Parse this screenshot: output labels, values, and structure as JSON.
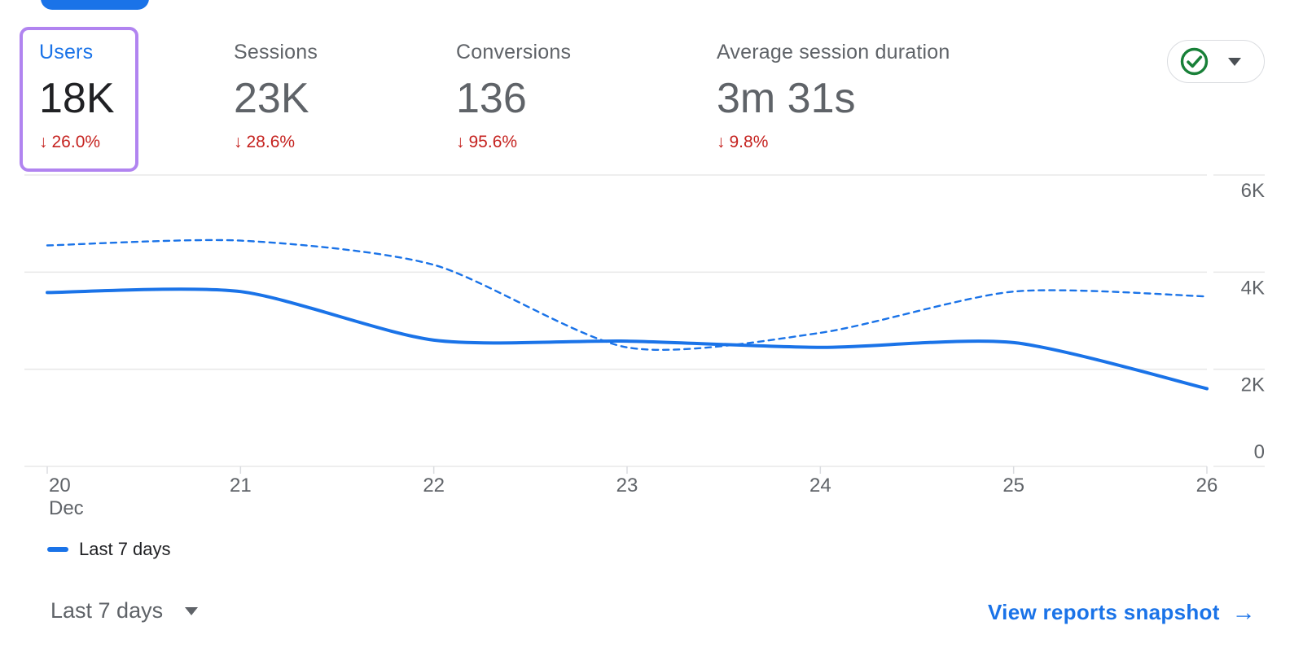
{
  "colors": {
    "accent_blue": "#1a73e8",
    "text_dark": "#202124",
    "text_gray": "#5f6368",
    "delta_red": "#c5221f",
    "highlight_purple": "#b184f0",
    "pill_border_gray": "#dadce0",
    "gridline_gray": "#e8e8e8",
    "check_green": "#188038"
  },
  "metrics": [
    {
      "label": "Users",
      "value": "18K",
      "arrow": "↓",
      "delta": "26.0%",
      "selected": true
    },
    {
      "label": "Sessions",
      "value": "23K",
      "arrow": "↓",
      "delta": "28.6%",
      "selected": false
    },
    {
      "label": "Conversions",
      "value": "136",
      "arrow": "↓",
      "delta": "95.6%",
      "selected": false
    },
    {
      "label": "Average session duration",
      "value": "3m 31s",
      "arrow": "↓",
      "delta": "9.8%",
      "selected": false
    }
  ],
  "chart_data": {
    "type": "line",
    "x_labels": [
      "20",
      "21",
      "22",
      "23",
      "24",
      "25",
      "26"
    ],
    "x_axis_secondary_label": "Dec",
    "series": [
      {
        "name": "Last 7 days",
        "style": "solid",
        "color": "#1a73e8",
        "values": [
          3580,
          3600,
          2600,
          2580,
          2450,
          2550,
          1600
        ]
      },
      {
        "name": "",
        "style": "dashed",
        "color": "#1a73e8",
        "values": [
          4550,
          4650,
          4150,
          2450,
          2750,
          3600,
          3500
        ]
      }
    ],
    "ylim": [
      0,
      6000
    ],
    "yticks": [
      {
        "value": 6000,
        "label": "6K"
      },
      {
        "value": 4000,
        "label": "4K"
      },
      {
        "value": 2000,
        "label": "2K"
      },
      {
        "value": 0,
        "label": "0"
      }
    ],
    "grid": "horizontal",
    "legend": [
      {
        "label": "Last 7 days",
        "style": "solid"
      }
    ],
    "legend_position": "bottom-left"
  },
  "footer": {
    "date_range": {
      "label": "Last 7 days"
    },
    "link": {
      "label": "View reports snapshot",
      "arrow": "→"
    }
  }
}
